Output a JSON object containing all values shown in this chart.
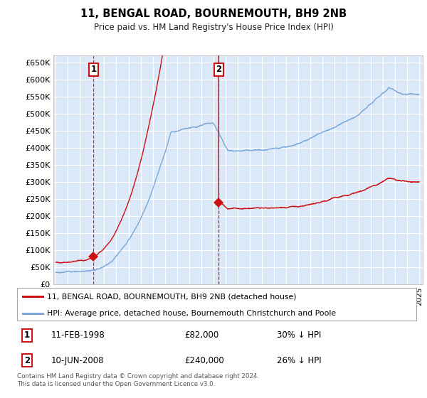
{
  "title": "11, BENGAL ROAD, BOURNEMOUTH, BH9 2NB",
  "subtitle": "Price paid vs. HM Land Registry's House Price Index (HPI)",
  "ytick_values": [
    0,
    50000,
    100000,
    150000,
    200000,
    250000,
    300000,
    350000,
    400000,
    450000,
    500000,
    550000,
    600000,
    650000
  ],
  "xlim_start": 1994.8,
  "xlim_end": 2025.3,
  "ylim_min": 0,
  "ylim_max": 670000,
  "background_color": "#dbe8f7",
  "grid_color": "#ffffff",
  "hpi_line_color": "#7aa8d8",
  "price_line_color": "#cc1111",
  "sale1_date": 1998.12,
  "sale1_price": 82000,
  "sale2_date": 2008.45,
  "sale2_price": 240000,
  "legend_line1": "11, BENGAL ROAD, BOURNEMOUTH, BH9 2NB (detached house)",
  "legend_line2": "HPI: Average price, detached house, Bournemouth Christchurch and Poole",
  "annotation1_text": "11-FEB-1998",
  "annotation1_price": "£82,000",
  "annotation1_hpi": "30% ↓ HPI",
  "annotation2_text": "10-JUN-2008",
  "annotation2_price": "£240,000",
  "annotation2_hpi": "26% ↓ HPI",
  "footer": "Contains HM Land Registry data © Crown copyright and database right 2024.\nThis data is licensed under the Open Government Licence v3.0."
}
